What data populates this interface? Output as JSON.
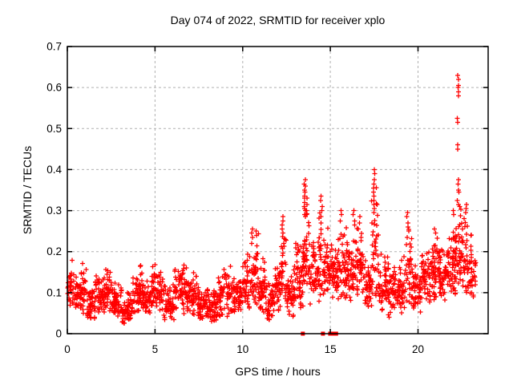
{
  "title": "Day 074 of 2022, SRMTID for receiver xplo",
  "x_axis": {
    "label": "GPS time / hours",
    "min": 0,
    "max": 24,
    "tick_labels": [
      "0",
      "5",
      "10",
      "15",
      "20"
    ],
    "tick_values": [
      0,
      5,
      10,
      15,
      20
    ]
  },
  "y_axis": {
    "label": "SRMTID / TECUs",
    "min": 0,
    "max": 0.7,
    "tick_labels": [
      "0",
      "0.1",
      "0.2",
      "0.3",
      "0.4",
      "0.5",
      "0.6",
      "0.7"
    ],
    "tick_values": [
      0,
      0.1,
      0.2,
      0.3,
      0.4,
      0.5,
      0.6,
      0.7
    ]
  },
  "colors": {
    "marker": "#ff0000",
    "grid": "#b0b0b0",
    "border": "#000000",
    "background": "#ffffff",
    "text": "#000000"
  },
  "chart_data": {
    "type": "scatter",
    "marker": "plus",
    "series_color": "#ff0000",
    "title": "Day 074 of 2022, SRMTID for receiver xplo",
    "xlabel": "GPS time / hours",
    "ylabel": "SRMTID / TECUs",
    "xlim": [
      0,
      24
    ],
    "ylim": [
      0,
      0.7
    ],
    "grid": true,
    "grid_style": "dashed",
    "legend": "none",
    "density_bands": [
      [
        0.0,
        0.3,
        28,
        0.06,
        0.19
      ],
      [
        0.3,
        0.8,
        42,
        0.05,
        0.16
      ],
      [
        0.8,
        1.1,
        30,
        0.05,
        0.185
      ],
      [
        1.1,
        1.6,
        48,
        0.03,
        0.12
      ],
      [
        1.6,
        2.1,
        48,
        0.04,
        0.155
      ],
      [
        2.1,
        2.6,
        48,
        0.05,
        0.17
      ],
      [
        2.6,
        3.1,
        48,
        0.04,
        0.13
      ],
      [
        3.1,
        3.7,
        52,
        0.02,
        0.105
      ],
      [
        3.7,
        4.3,
        52,
        0.04,
        0.175
      ],
      [
        4.3,
        4.8,
        46,
        0.04,
        0.14
      ],
      [
        4.8,
        5.5,
        62,
        0.05,
        0.185
      ],
      [
        5.5,
        6.1,
        55,
        0.03,
        0.13
      ],
      [
        6.1,
        6.8,
        62,
        0.04,
        0.19
      ],
      [
        6.8,
        7.4,
        56,
        0.04,
        0.165
      ],
      [
        7.4,
        8.0,
        55,
        0.03,
        0.125
      ],
      [
        8.0,
        8.6,
        55,
        0.025,
        0.11
      ],
      [
        8.6,
        9.4,
        66,
        0.04,
        0.17
      ],
      [
        9.4,
        10.0,
        55,
        0.05,
        0.15
      ],
      [
        10.0,
        10.4,
        40,
        0.06,
        0.2
      ],
      [
        10.4,
        10.9,
        46,
        0.07,
        0.26
      ],
      [
        10.9,
        11.3,
        40,
        0.05,
        0.185
      ],
      [
        11.3,
        11.8,
        46,
        0.03,
        0.135
      ],
      [
        11.8,
        12.2,
        40,
        0.05,
        0.19
      ],
      [
        12.2,
        12.5,
        30,
        0.06,
        0.28
      ],
      [
        12.5,
        13.0,
        50,
        0.04,
        0.175
      ],
      [
        13.0,
        13.45,
        46,
        0.05,
        0.25
      ],
      [
        13.45,
        13.8,
        40,
        0.09,
        0.32
      ],
      [
        13.8,
        14.35,
        56,
        0.07,
        0.24
      ],
      [
        14.35,
        14.85,
        50,
        0.09,
        0.3
      ],
      [
        14.85,
        15.35,
        50,
        0.08,
        0.22
      ],
      [
        15.35,
        15.9,
        56,
        0.07,
        0.28
      ],
      [
        15.9,
        16.45,
        56,
        0.08,
        0.26
      ],
      [
        16.45,
        16.9,
        46,
        0.08,
        0.29
      ],
      [
        16.9,
        17.35,
        46,
        0.06,
        0.21
      ],
      [
        17.35,
        17.75,
        40,
        0.08,
        0.36
      ],
      [
        17.75,
        18.3,
        50,
        0.05,
        0.2
      ],
      [
        18.3,
        18.85,
        50,
        0.04,
        0.185
      ],
      [
        18.85,
        19.25,
        40,
        0.05,
        0.19
      ],
      [
        19.25,
        19.65,
        36,
        0.07,
        0.28
      ],
      [
        19.65,
        20.15,
        50,
        0.05,
        0.185
      ],
      [
        20.15,
        20.7,
        56,
        0.06,
        0.22
      ],
      [
        20.7,
        21.2,
        50,
        0.08,
        0.25
      ],
      [
        21.2,
        21.75,
        56,
        0.08,
        0.225
      ],
      [
        21.75,
        22.15,
        46,
        0.09,
        0.28
      ],
      [
        22.15,
        22.55,
        40,
        0.1,
        0.33
      ],
      [
        22.55,
        23.05,
        50,
        0.07,
        0.31
      ],
      [
        23.05,
        23.3,
        18,
        0.08,
        0.2
      ]
    ],
    "spike_columns": [
      {
        "x": 10.55,
        "ys": [
          0.255,
          0.245,
          0.235
        ]
      },
      {
        "x": 10.75,
        "ys": [
          0.25,
          0.24
        ]
      },
      {
        "x": 12.3,
        "ys": [
          0.285,
          0.275,
          0.265,
          0.255,
          0.245
        ]
      },
      {
        "x": 13.55,
        "ys": [
          0.375,
          0.365,
          0.36,
          0.35,
          0.345,
          0.335,
          0.33,
          0.32,
          0.31,
          0.305,
          0.3,
          0.29,
          0.285
        ]
      },
      {
        "x": 13.67,
        "ys": [
          0.33,
          0.315,
          0.3,
          0.29
        ]
      },
      {
        "x": 14.5,
        "ys": [
          0.335,
          0.325,
          0.31,
          0.3,
          0.285,
          0.27
        ]
      },
      {
        "x": 15.62,
        "ys": [
          0.3,
          0.29,
          0.275
        ]
      },
      {
        "x": 16.35,
        "ys": [
          0.3,
          0.29,
          0.275,
          0.265
        ]
      },
      {
        "x": 16.65,
        "ys": [
          0.285,
          0.27
        ]
      },
      {
        "x": 17.5,
        "ys": [
          0.4,
          0.39,
          0.375,
          0.365,
          0.355,
          0.345,
          0.335,
          0.325,
          0.315,
          0.305,
          0.295
        ]
      },
      {
        "x": 19.4,
        "ys": [
          0.295,
          0.285,
          0.27,
          0.26
        ]
      },
      {
        "x": 20.95,
        "ys": [
          0.255,
          0.245
        ]
      },
      {
        "x": 22.0,
        "ys": [
          0.3,
          0.29
        ]
      },
      {
        "x": 22.28,
        "ys": [
          0.63,
          0.62,
          0.605,
          0.6,
          0.59,
          0.58,
          0.525,
          0.515,
          0.46,
          0.45,
          0.375,
          0.365,
          0.35,
          0.345,
          0.325,
          0.315
        ]
      },
      {
        "x": 22.75,
        "ys": [
          0.315,
          0.305,
          0.295
        ]
      }
    ],
    "zero_markers_x": [
      13.43,
      14.58,
      14.99,
      15.2,
      15.33
    ]
  }
}
